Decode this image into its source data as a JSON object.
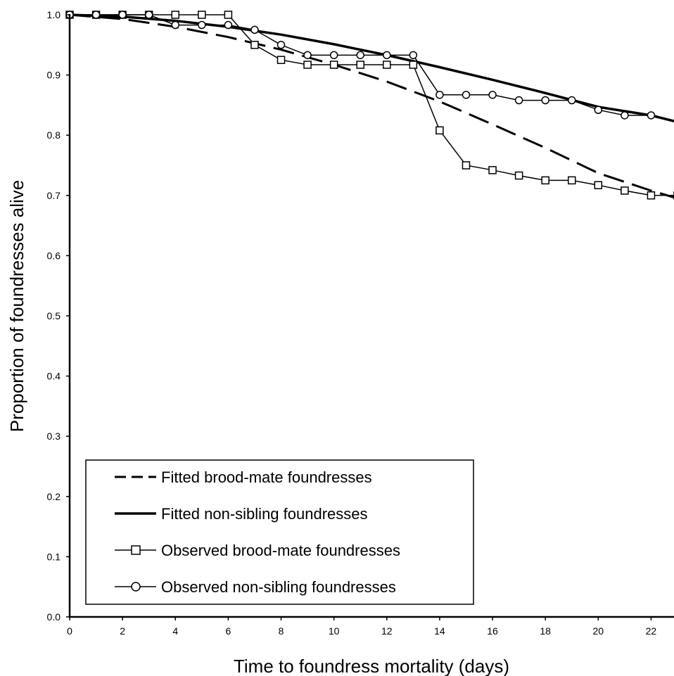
{
  "chart_data": {
    "type": "line",
    "xlabel": "Time to foundress mortality (days)",
    "ylabel": "Proportion of foundresses alive",
    "xlim": [
      0,
      23
    ],
    "ylim": [
      0,
      1.0
    ],
    "x_ticks": [
      "0",
      "2",
      "4",
      "6",
      "8",
      "10",
      "12",
      "14",
      "16",
      "18",
      "20",
      "22"
    ],
    "y_ticks": [
      "0.0",
      "0.1",
      "0.2",
      "0.3",
      "0.4",
      "0.5",
      "0.6",
      "0.7",
      "0.8",
      "0.9",
      "1.0"
    ],
    "grid": false,
    "legend_position": "bottom-left",
    "series": [
      {
        "name": "Fitted brood-mate foundresses",
        "style": "dashed",
        "x": [
          0,
          2,
          4,
          6,
          8,
          10,
          12,
          14,
          16,
          18,
          20,
          22,
          23
        ],
        "y": [
          1.0,
          0.993,
          0.98,
          0.963,
          0.942,
          0.917,
          0.889,
          0.856,
          0.818,
          0.779,
          0.737,
          0.708,
          0.695
        ]
      },
      {
        "name": "Fitted non-sibling foundresses",
        "style": "solid",
        "x": [
          0,
          2,
          4,
          6,
          8,
          10,
          12,
          14,
          16,
          18,
          20,
          22,
          23
        ],
        "y": [
          1.0,
          0.997,
          0.99,
          0.98,
          0.967,
          0.951,
          0.933,
          0.913,
          0.892,
          0.87,
          0.847,
          0.833,
          0.822
        ]
      },
      {
        "name": "Observed brood-mate foundresses",
        "style": "square-markers",
        "x": [
          0,
          1,
          2,
          3,
          4,
          5,
          6,
          7,
          8,
          9,
          10,
          11,
          12,
          13,
          14,
          15,
          16,
          17,
          18,
          19,
          20,
          21,
          22,
          23
        ],
        "y": [
          1.0,
          1.0,
          1.0,
          1.0,
          1.0,
          1.0,
          1.0,
          0.95,
          0.925,
          0.917,
          0.917,
          0.917,
          0.917,
          0.917,
          0.808,
          0.75,
          0.742,
          0.733,
          0.725,
          0.725,
          0.717,
          0.708,
          0.7,
          0.7
        ]
      },
      {
        "name": "Observed non-sibling foundresses",
        "style": "circle-markers",
        "x": [
          0,
          1,
          2,
          3,
          4,
          5,
          6,
          7,
          8,
          9,
          10,
          11,
          12,
          13,
          14,
          15,
          16,
          17,
          18,
          19,
          20,
          21,
          22
        ],
        "y": [
          1.0,
          1.0,
          1.0,
          1.0,
          0.983,
          0.983,
          0.983,
          0.975,
          0.95,
          0.933,
          0.933,
          0.933,
          0.933,
          0.933,
          0.867,
          0.867,
          0.867,
          0.858,
          0.858,
          0.858,
          0.842,
          0.833,
          0.833
        ]
      }
    ]
  }
}
